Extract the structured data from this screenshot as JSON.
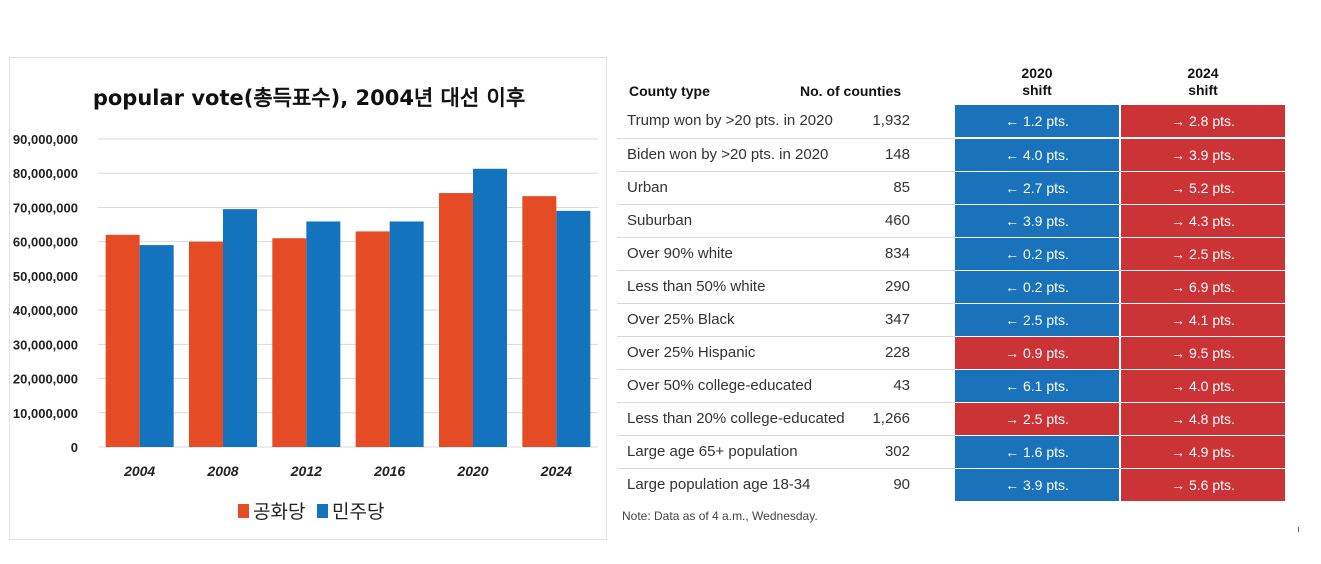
{
  "colors": {
    "republican": "#E54B25",
    "democrat": "#1373BD",
    "shift_left": "#1A73BA",
    "shift_right": "#CC3336",
    "grid": "#d9d9d9"
  },
  "chart_data": {
    "type": "bar",
    "title": "popular vote(총득표수), 2004년 대선 이후",
    "categories": [
      "2004",
      "2008",
      "2012",
      "2016",
      "2020",
      "2024"
    ],
    "series": [
      {
        "name": "공화당",
        "color": "#E54B25",
        "values": [
          62000000,
          60000000,
          61000000,
          63000000,
          74200000,
          73300000
        ]
      },
      {
        "name": "민주당",
        "color": "#1373BD",
        "values": [
          59000000,
          69500000,
          65900000,
          65900000,
          81300000,
          69000000
        ]
      }
    ],
    "ylim": [
      0,
      90000000
    ],
    "yticks": [
      "0",
      "10,000,000",
      "20,000,000",
      "30,000,000",
      "40,000,000",
      "50,000,000",
      "60,000,000",
      "70,000,000",
      "80,000,000",
      "90,000,000"
    ],
    "grid": true,
    "legend_position": "bottom"
  },
  "table": {
    "headers": {
      "county_type": "County type",
      "num_counties": "No. of counties",
      "shift2020_line1": "2020",
      "shift2020_line2": "shift",
      "shift2024_line1": "2024",
      "shift2024_line2": "shift"
    },
    "rows": [
      {
        "type": "Trump won by >20 pts. in 2020",
        "count": "1,932",
        "s2020": "← 1.2 pts.",
        "s2020_dir": "left",
        "s2024": "→ 2.8 pts.",
        "s2024_dir": "right"
      },
      {
        "type": "Biden won by >20 pts. in 2020",
        "count": "148",
        "s2020": "← 4.0 pts.",
        "s2020_dir": "left",
        "s2024": "→ 3.9 pts.",
        "s2024_dir": "right"
      },
      {
        "type": "Urban",
        "count": "85",
        "s2020": "← 2.7 pts.",
        "s2020_dir": "left",
        "s2024": "→ 5.2 pts.",
        "s2024_dir": "right"
      },
      {
        "type": "Suburban",
        "count": "460",
        "s2020": "← 3.9 pts.",
        "s2020_dir": "left",
        "s2024": "→ 4.3 pts.",
        "s2024_dir": "right"
      },
      {
        "type": "Over 90% white",
        "count": "834",
        "s2020": "← 0.2 pts.",
        "s2020_dir": "left",
        "s2024": "→ 2.5 pts.",
        "s2024_dir": "right"
      },
      {
        "type": "Less than 50% white",
        "count": "290",
        "s2020": "← 0.2 pts.",
        "s2020_dir": "left",
        "s2024": "→ 6.9 pts.",
        "s2024_dir": "right"
      },
      {
        "type": "Over 25% Black",
        "count": "347",
        "s2020": "← 2.5 pts.",
        "s2020_dir": "left",
        "s2024": "→ 4.1 pts.",
        "s2024_dir": "right"
      },
      {
        "type": "Over 25% Hispanic",
        "count": "228",
        "s2020": "→ 0.9 pts.",
        "s2020_dir": "right",
        "s2024": "→ 9.5 pts.",
        "s2024_dir": "right"
      },
      {
        "type": "Over 50% college-educated",
        "count": "43",
        "s2020": "← 6.1 pts.",
        "s2020_dir": "left",
        "s2024": "→ 4.0 pts.",
        "s2024_dir": "right"
      },
      {
        "type": "Less than 20% college-educated",
        "count": "1,266",
        "s2020": "→ 2.5 pts.",
        "s2020_dir": "right",
        "s2024": "→ 4.8 pts.",
        "s2024_dir": "right"
      },
      {
        "type": "Large age 65+ population",
        "count": "302",
        "s2020": "← 1.6 pts.",
        "s2020_dir": "left",
        "s2024": "→ 4.9 pts.",
        "s2024_dir": "right"
      },
      {
        "type": "Large population age 18-34",
        "count": "90",
        "s2020": "← 3.9 pts.",
        "s2020_dir": "left",
        "s2024": "→ 5.6 pts.",
        "s2024_dir": "right"
      }
    ],
    "note": "Note: Data as of 4 a.m., Wednesday."
  }
}
